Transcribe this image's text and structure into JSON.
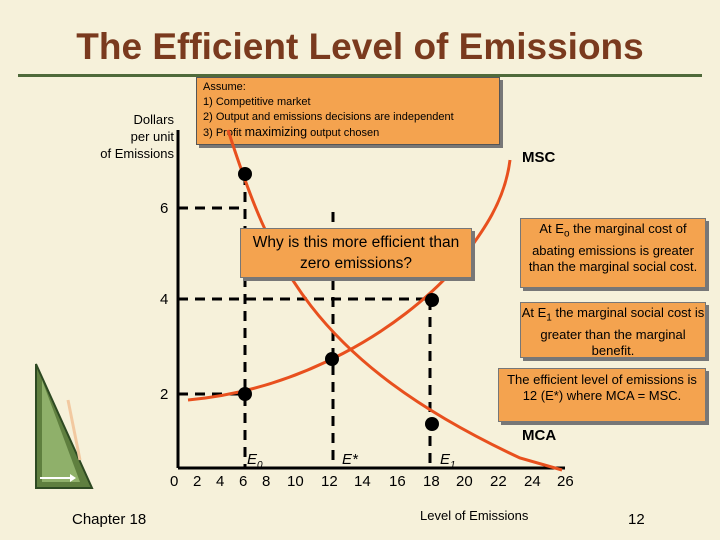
{
  "slide": {
    "title": "The Efficient Level of Emissions",
    "chapter": "Chapter 18",
    "page_number": "12"
  },
  "assumptions": {
    "heading": "Assume:",
    "item1": "1) Competitive market",
    "item2": "2) Output and emissions decisions are independent",
    "item3_prefix": "3) Profit ",
    "item3_emph": "maximizing",
    "item3_suffix": " output chosen"
  },
  "axes": {
    "y_label_line1": "Dollars",
    "y_label_line2": "per unit",
    "y_label_line3": "of Emissions",
    "x_label": "Level of Emissions",
    "y_ticks": [
      "6",
      "4",
      "2"
    ],
    "x_ticks": [
      "0",
      "2",
      "4",
      "6",
      "8",
      "10",
      "12",
      "14",
      "16",
      "18",
      "20",
      "22",
      "24",
      "26"
    ]
  },
  "curves": {
    "msc_label": "MSC",
    "mca_label": "MCA",
    "color": "#e8501e"
  },
  "points": {
    "e0": "E",
    "e0_sub": "0",
    "estar": "E*",
    "e1": "E",
    "e1_sub": "1"
  },
  "callouts": {
    "question": "Why is this more efficient than zero emissions?",
    "e0_pre": "At E",
    "e0_sub": "o",
    "e0_post": " the marginal cost of abating emissions is greater than the marginal social cost.",
    "e1_pre": "At E",
    "e1_sub": "1",
    "e1_post": " the marginal social cost is greater than the marginal benefit.",
    "efficient": "The efficient level of emissions is 12 (E*) where MCA = MSC."
  },
  "chart_data": {
    "type": "line",
    "x_range": [
      0,
      26
    ],
    "y_range": [
      0,
      7
    ],
    "series": [
      {
        "name": "MSC",
        "x": [
          2,
          6,
          12,
          18,
          22,
          23.5
        ],
        "y": [
          0.8,
          1.7,
          3.1,
          4.0,
          5.0,
          6.2
        ]
      },
      {
        "name": "MCA",
        "x": [
          6,
          7,
          8,
          10,
          12,
          14,
          18,
          22,
          26
        ],
        "y": [
          7.0,
          5.0,
          4.0,
          3.3,
          3.1,
          1.8,
          0.8,
          0.2,
          0.0
        ]
      }
    ],
    "points": [
      {
        "label": "E0",
        "x": 6,
        "y": 6
      },
      {
        "label": "E0",
        "x": 6,
        "y": 2
      },
      {
        "label": "E*",
        "x": 12,
        "y": 3
      },
      {
        "label": "E1",
        "x": 18,
        "y": 4
      },
      {
        "label": "E1",
        "x": 18,
        "y": 1
      }
    ]
  }
}
